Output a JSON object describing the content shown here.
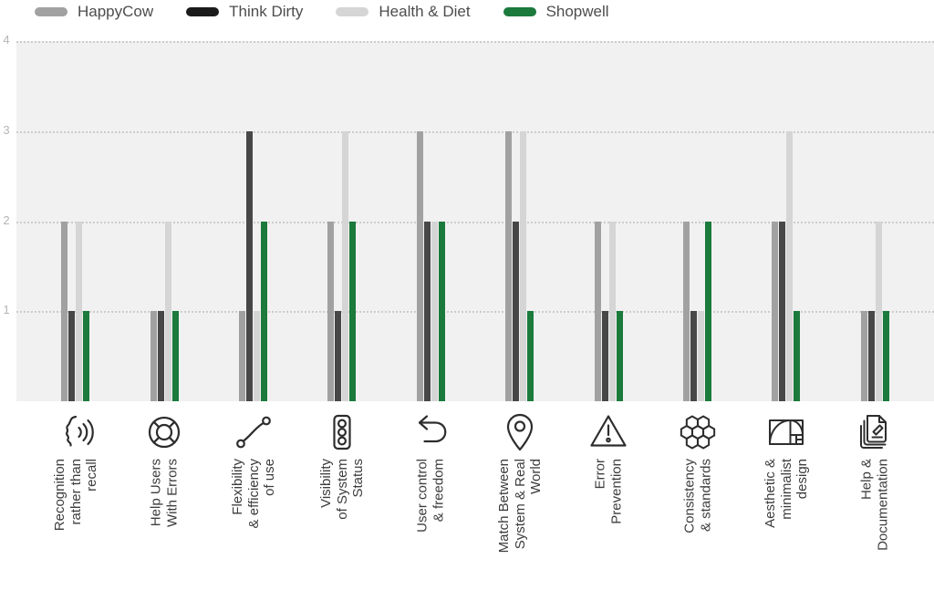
{
  "page": {
    "background": "#ffffff"
  },
  "chart_data": {
    "type": "bar",
    "title": "",
    "legend_position": "top-left",
    "grid": "horizontal dotted",
    "plot_background": "#f2f1f1",
    "gridline_color": "#cccccc",
    "y_tick_color": "#b4b4b4",
    "category_label_color": "#3c3c3c",
    "legend_text_color": "#4d4d4d",
    "ylim": [
      0,
      4
    ],
    "y_ticks": [
      4,
      3,
      2,
      1
    ],
    "categories": [
      {
        "label_lines": [
          "Recognition",
          "rather than",
          "recall"
        ],
        "icon": "voice-speech-icon"
      },
      {
        "label_lines": [
          "Help Users",
          "With Errors"
        ],
        "icon": "lifebuoy-icon"
      },
      {
        "label_lines": [
          "Flexibility",
          "& efficiency",
          "of use"
        ],
        "icon": "trend-connection-icon"
      },
      {
        "label_lines": [
          "Visibility",
          "of System",
          "Status"
        ],
        "icon": "traffic-light-icon"
      },
      {
        "label_lines": [
          "User control",
          "& freedom"
        ],
        "icon": "undo-arrow-icon"
      },
      {
        "label_lines": [
          "Match Between",
          "System & Real",
          "World"
        ],
        "icon": "map-pin-icon"
      },
      {
        "label_lines": [
          "Error",
          "Prevention"
        ],
        "icon": "warning-triangle-icon"
      },
      {
        "label_lines": [
          "Consistency",
          "& standards"
        ],
        "icon": "honeycomb-icon"
      },
      {
        "label_lines": [
          "Aesthetic &",
          "minimalist",
          "design"
        ],
        "icon": "golden-ratio-icon"
      },
      {
        "label_lines": [
          "Help &",
          "Documentation"
        ],
        "icon": "documents-pencil-icon"
      }
    ],
    "series": [
      {
        "name": "HappyCow",
        "color": "#a1a1a1",
        "legend_color": "#a1a1a1",
        "values": [
          2,
          1,
          1,
          2,
          3,
          3,
          2,
          2,
          2,
          1
        ]
      },
      {
        "name": "Think Dirty",
        "color": "#474747",
        "legend_color": "#1b1b1b",
        "values": [
          1,
          1,
          3,
          1,
          2,
          2,
          1,
          1,
          2,
          1
        ]
      },
      {
        "name": "Health & Diet",
        "color": "#d5d5d5",
        "legend_color": "#d5d5d5",
        "values": [
          2,
          2,
          1,
          3,
          2,
          3,
          2,
          1,
          3,
          2
        ]
      },
      {
        "name": "Shopwell",
        "color": "#1b7a3c",
        "legend_color": "#1b7a3c",
        "values": [
          1,
          1,
          2,
          2,
          2,
          1,
          1,
          2,
          1,
          1
        ]
      }
    ]
  }
}
